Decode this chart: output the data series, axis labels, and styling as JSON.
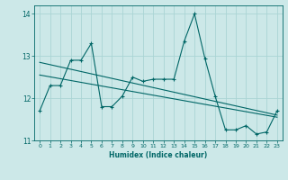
{
  "xlabel": "Humidex (Indice chaleur)",
  "ylabel": "",
  "background_color": "#cce8e8",
  "grid_color": "#aad4d4",
  "line_color": "#006666",
  "xlim": [
    -0.5,
    23.5
  ],
  "ylim": [
    11,
    14.2
  ],
  "yticks": [
    11,
    12,
    13,
    14
  ],
  "xticks": [
    0,
    1,
    2,
    3,
    4,
    5,
    6,
    7,
    8,
    9,
    10,
    11,
    12,
    13,
    14,
    15,
    16,
    17,
    18,
    19,
    20,
    21,
    22,
    23
  ],
  "series1_x": [
    0,
    1,
    2,
    3,
    4,
    5,
    6,
    7,
    8,
    9,
    10,
    11,
    12,
    13,
    14,
    15,
    16,
    17,
    18,
    19,
    20,
    21,
    22,
    23
  ],
  "series1_y": [
    11.7,
    12.3,
    12.3,
    12.9,
    12.9,
    13.3,
    11.8,
    11.8,
    12.05,
    12.5,
    12.4,
    12.45,
    12.45,
    12.45,
    13.35,
    14.0,
    12.95,
    12.05,
    11.25,
    11.25,
    11.35,
    11.15,
    11.2,
    11.7
  ],
  "trend1_x": [
    0,
    23
  ],
  "trend1_y": [
    12.55,
    11.55
  ],
  "trend2_x": [
    0,
    23
  ],
  "trend2_y": [
    12.85,
    11.6
  ]
}
